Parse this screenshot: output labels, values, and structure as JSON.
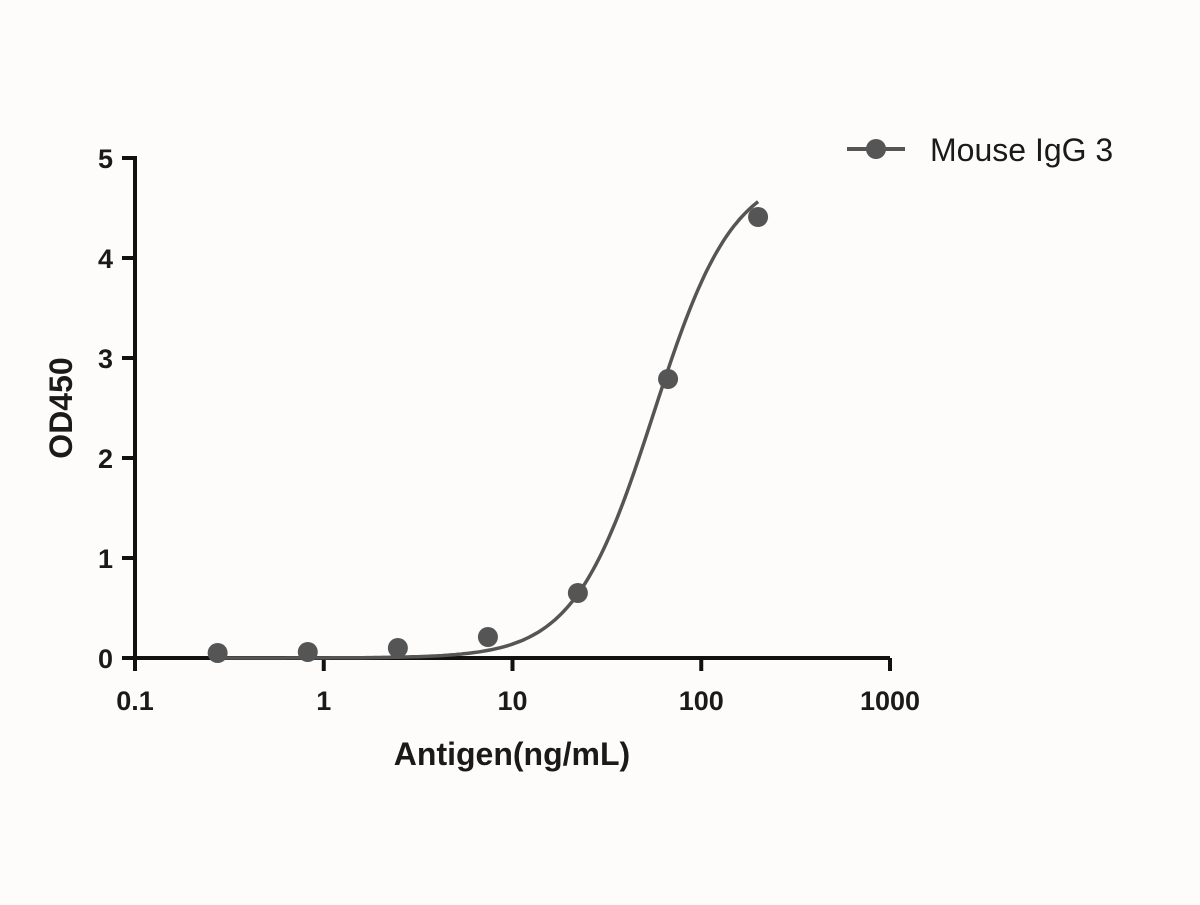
{
  "chart_data": {
    "type": "scatter",
    "title": "",
    "xlabel": "Antigen(ng/mL)",
    "ylabel": "OD450",
    "xscale": "log",
    "xlim": [
      0.1,
      1000
    ],
    "ylim": [
      0,
      5
    ],
    "xticks": [
      "0.1",
      "1",
      "10",
      "100",
      "1000"
    ],
    "xtick_values": [
      0.1,
      1,
      10,
      100,
      1000
    ],
    "yticks": [
      "0",
      "1",
      "2",
      "3",
      "4",
      "5"
    ],
    "ytick_values": [
      0,
      1,
      2,
      3,
      4,
      5
    ],
    "grid": false,
    "legend_position": "top-right",
    "series": [
      {
        "name": "Mouse IgG 3",
        "color": "#555555",
        "x": [
          0.274,
          0.823,
          2.47,
          7.41,
          22.2,
          66.7,
          200
        ],
        "y": [
          0.05,
          0.06,
          0.1,
          0.21,
          0.65,
          2.79,
          4.41
        ],
        "fit": {
          "model": "4PL",
          "bottom": 0.0,
          "top": 4.9,
          "ec50": 56,
          "hill": 2.05
        }
      }
    ]
  }
}
